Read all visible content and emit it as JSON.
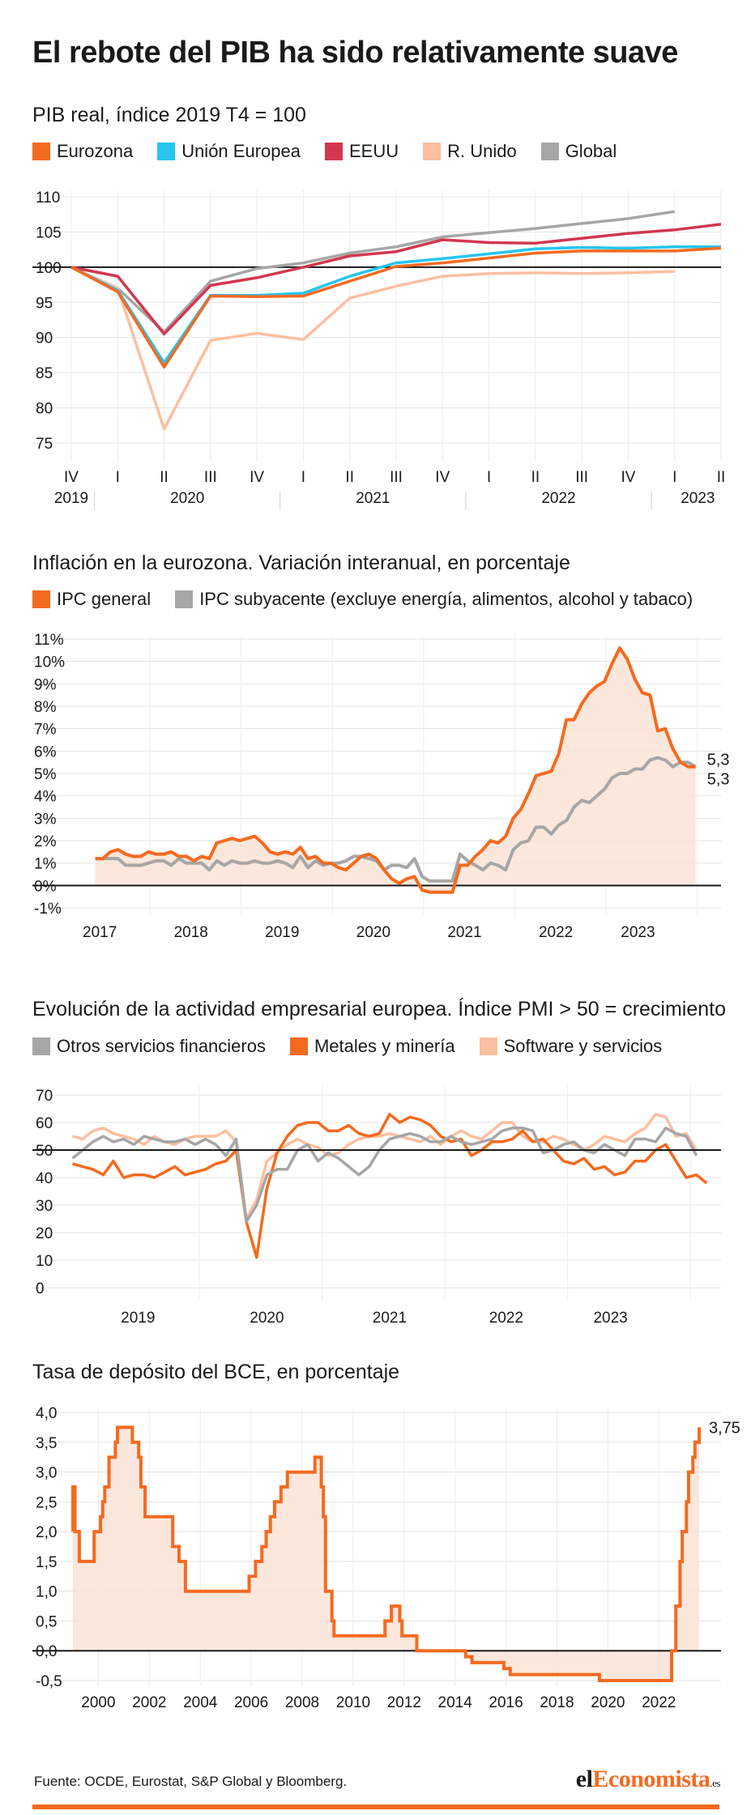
{
  "title": "El rebote del PIB ha sido relativamente suave",
  "source": "Fuente: OCDE, Eurostat, S&P Global y Bloomberg.",
  "brand": {
    "pre": "el",
    "accent": "Economista",
    "suffix": ".es"
  },
  "colors": {
    "orange": "#f46a1f",
    "cyan": "#26c6f0",
    "red": "#d2374f",
    "peach": "#fcbfa0",
    "gray": "#a6a6a6",
    "fill": "#fbe3d6"
  },
  "chart_data": [
    {
      "type": "line",
      "title": "PIB real, índice 2019 T4 = 100",
      "ylim": [
        72,
        112
      ],
      "y_ticks": [
        110,
        105,
        100,
        95,
        90,
        85,
        80,
        75
      ],
      "reference_line": 100,
      "x_quarters": [
        "IV",
        "I",
        "II",
        "III",
        "IV",
        "I",
        "II",
        "III",
        "IV",
        "I",
        "II",
        "III",
        "IV",
        "I",
        "II"
      ],
      "x_years": [
        "2019",
        "2020",
        "2021",
        "2022",
        "2023"
      ],
      "grid": true,
      "series": [
        {
          "name": "Eurozona",
          "color": "#f46a1f",
          "values": [
            100,
            96.5,
            85.8,
            95.9,
            95.8,
            95.9,
            98.0,
            100.1,
            100.6,
            101.3,
            102.0,
            102.3,
            102.3,
            102.3,
            102.7
          ]
        },
        {
          "name": "Unión Europea",
          "color": "#26c6f0",
          "values": [
            100,
            96.7,
            86.4,
            96.0,
            96.0,
            96.3,
            98.7,
            100.6,
            101.2,
            101.9,
            102.6,
            102.8,
            102.7,
            102.9,
            102.9
          ]
        },
        {
          "name": "EEUU",
          "color": "#d2374f",
          "values": [
            100,
            98.7,
            90.5,
            97.4,
            98.5,
            100.0,
            101.6,
            102.2,
            103.9,
            103.5,
            103.4,
            104.1,
            104.8,
            105.3,
            106.1
          ]
        },
        {
          "name": "R. Unido",
          "color": "#fcbfa0",
          "values": [
            100,
            97.0,
            77.0,
            89.6,
            90.6,
            89.7,
            95.6,
            97.3,
            98.7,
            99.1,
            99.2,
            99.1,
            99.2,
            99.4,
            null
          ]
        },
        {
          "name": "Global",
          "color": "#a6a6a6",
          "values": [
            100,
            97.0,
            90.8,
            98.0,
            99.8,
            100.6,
            102.0,
            102.9,
            104.3,
            104.9,
            105.5,
            106.2,
            106.9,
            107.9,
            null
          ]
        }
      ]
    },
    {
      "type": "area",
      "title": "Inflación en la eurozona. Variación interanual, en porcentaje",
      "ylim": [
        -1.5,
        11.5
      ],
      "y_ticks": [
        11,
        10,
        9,
        8,
        7,
        6,
        5,
        4,
        3,
        2,
        1,
        0,
        -1
      ],
      "y_tick_labels": [
        "11%",
        "10%",
        "9%",
        "8%",
        "7%",
        "6%",
        "5%",
        "4%",
        "3%",
        "2%",
        "1%",
        "0%",
        "-1%"
      ],
      "x_years": [
        "2017",
        "2018",
        "2019",
        "2020",
        "2021",
        "2022",
        "2023"
      ],
      "grid": true,
      "end_labels": [
        "5,3",
        "5,3"
      ],
      "series": [
        {
          "name": "IPC general",
          "color": "#f46a1f",
          "start": "2017-01",
          "values": [
            1.2,
            1.2,
            1.5,
            1.6,
            1.4,
            1.3,
            1.3,
            1.5,
            1.4,
            1.4,
            1.5,
            1.3,
            1.3,
            1.1,
            1.3,
            1.2,
            1.9,
            2.0,
            2.1,
            2.0,
            2.1,
            2.2,
            1.9,
            1.5,
            1.4,
            1.5,
            1.4,
            1.7,
            1.2,
            1.3,
            1.0,
            1.0,
            0.8,
            0.7,
            1.0,
            1.3,
            1.4,
            1.2,
            0.7,
            0.3,
            0.1,
            0.3,
            0.4,
            -0.2,
            -0.3,
            -0.3,
            -0.3,
            -0.3,
            0.9,
            0.9,
            1.3,
            1.6,
            2.0,
            1.9,
            2.2,
            3.0,
            3.4,
            4.1,
            4.9,
            5.0,
            5.1,
            5.9,
            7.4,
            7.4,
            8.1,
            8.6,
            8.9,
            9.1,
            9.9,
            10.6,
            10.1,
            9.2,
            8.6,
            8.5,
            6.9,
            7.0,
            6.1,
            5.5,
            5.3,
            5.3
          ]
        },
        {
          "name": "IPC subyacente (excluye energía, alimentos, alcohol y tabaco)",
          "color": "#a6a6a6",
          "start": "2017-01",
          "values": [
            1.2,
            1.2,
            1.2,
            1.2,
            0.9,
            0.9,
            0.9,
            1.0,
            1.1,
            1.1,
            0.9,
            1.2,
            1.0,
            1.0,
            1.0,
            0.7,
            1.1,
            0.9,
            1.1,
            1.0,
            1.0,
            1.1,
            1.0,
            1.0,
            1.1,
            1.0,
            0.8,
            1.3,
            0.8,
            1.1,
            0.9,
            1.0,
            1.0,
            1.1,
            1.3,
            1.3,
            1.2,
            1.1,
            0.7,
            0.9,
            0.9,
            0.8,
            1.2,
            0.4,
            0.2,
            0.2,
            0.2,
            0.2,
            1.4,
            1.1,
            0.9,
            0.7,
            1.0,
            0.9,
            0.7,
            1.6,
            1.9,
            2.0,
            2.6,
            2.6,
            2.3,
            2.7,
            2.9,
            3.5,
            3.8,
            3.7,
            4.0,
            4.3,
            4.8,
            5.0,
            5.0,
            5.2,
            5.2,
            5.6,
            5.7,
            5.6,
            5.3,
            5.5,
            5.5,
            5.3
          ]
        }
      ]
    },
    {
      "type": "line",
      "title": "Evolución de la actividad empresarial europea. Índice PMI > 50 = crecimiento",
      "ylim": [
        -4,
        74
      ],
      "y_ticks": [
        70,
        60,
        50,
        40,
        30,
        20,
        10,
        0
      ],
      "reference_line": 50,
      "x_years": [
        "2019",
        "2020",
        "2021",
        "2022",
        "2023"
      ],
      "grid": true,
      "series": [
        {
          "name": "Otros servicios financieros",
          "color": "#a6a6a6",
          "start": "2018-06",
          "values": [
            47,
            50,
            53,
            55,
            53,
            54,
            52,
            55,
            54,
            53,
            53,
            54,
            52,
            54,
            52,
            48,
            54,
            24,
            30,
            41,
            43,
            43,
            50,
            52,
            46,
            49,
            47,
            44,
            41,
            44,
            50,
            54,
            55,
            56,
            55,
            53,
            53,
            55,
            53,
            52,
            53,
            54,
            57,
            58,
            58,
            57,
            49,
            50,
            52,
            53,
            50,
            49,
            52,
            50,
            48,
            54,
            54,
            53,
            58,
            56,
            55,
            48
          ]
        },
        {
          "name": "Metales y minería",
          "color": "#f46a1f",
          "start": "2018-06",
          "values": [
            45,
            44,
            43,
            41,
            46,
            40,
            41,
            41,
            40,
            42,
            44,
            41,
            42,
            43,
            45,
            46,
            50,
            24,
            11,
            36,
            49,
            55,
            59,
            60,
            60,
            57,
            57,
            59,
            56,
            55,
            56,
            63,
            60,
            62,
            61,
            59,
            55,
            53,
            54,
            48,
            50,
            53,
            53,
            54,
            57,
            53,
            54,
            50,
            46,
            45,
            47,
            43,
            44,
            41,
            42,
            46,
            46,
            50,
            52,
            46,
            40,
            41,
            38
          ]
        },
        {
          "name": "Software y servicios",
          "color": "#fcbfa0",
          "start": "2018-06",
          "values": [
            55,
            54,
            57,
            58,
            56,
            55,
            54,
            52,
            55,
            53,
            52,
            54,
            55,
            55,
            55,
            57,
            53,
            25,
            32,
            46,
            49,
            52,
            54,
            52,
            51,
            48,
            49,
            52,
            54,
            55,
            55,
            56,
            55,
            54,
            53,
            55,
            52,
            55,
            57,
            55,
            54,
            57,
            60,
            60,
            55,
            53,
            53,
            55,
            54,
            52,
            50,
            52,
            55,
            54,
            53,
            56,
            58,
            63,
            62,
            55,
            56,
            50
          ]
        }
      ]
    },
    {
      "type": "area",
      "title": "Tasa de depósito del BCE, en porcentaje",
      "ylim": [
        -0.75,
        4.25
      ],
      "y_ticks": [
        4.0,
        3.5,
        3.0,
        2.5,
        2.0,
        1.5,
        1.0,
        0.5,
        0.0,
        -0.5
      ],
      "y_tick_labels": [
        "4,0",
        "3,5",
        "3,0",
        "2,5",
        "2,0",
        "1,5",
        "1,0",
        "0,5",
        "0,0",
        "-0,5"
      ],
      "x_years": [
        "2000",
        "2002",
        "2004",
        "2006",
        "2008",
        "2010",
        "2012",
        "2014",
        "2016",
        "2018",
        "2020",
        "2022"
      ],
      "grid": true,
      "end_label": "3,75",
      "series": [
        {
          "name": "",
          "color": "#f46a1f",
          "steps": [
            [
              "1999-01",
              2.0
            ],
            [
              "1999-01",
              2.75
            ],
            [
              "1999-02",
              2.0
            ],
            [
              "1999-04",
              1.5
            ],
            [
              "1999-11",
              2.0
            ],
            [
              "2000-02",
              2.25
            ],
            [
              "2000-03",
              2.5
            ],
            [
              "2000-04",
              2.75
            ],
            [
              "2000-06",
              3.25
            ],
            [
              "2000-09",
              3.5
            ],
            [
              "2000-10",
              3.75
            ],
            [
              "2001-05",
              3.5
            ],
            [
              "2001-08",
              3.25
            ],
            [
              "2001-09",
              2.75
            ],
            [
              "2001-11",
              2.25
            ],
            [
              "2002-12",
              1.75
            ],
            [
              "2003-03",
              1.5
            ],
            [
              "2003-06",
              1.0
            ],
            [
              "2005-12",
              1.25
            ],
            [
              "2006-03",
              1.5
            ],
            [
              "2006-06",
              1.75
            ],
            [
              "2006-08",
              2.0
            ],
            [
              "2006-10",
              2.25
            ],
            [
              "2006-12",
              2.5
            ],
            [
              "2007-03",
              2.75
            ],
            [
              "2007-06",
              3.0
            ],
            [
              "2008-07",
              3.25
            ],
            [
              "2008-10",
              2.75
            ],
            [
              "2008-11",
              2.25
            ],
            [
              "2008-12",
              1.0
            ],
            [
              "2009-01",
              1.0
            ],
            [
              "2009-03",
              0.5
            ],
            [
              "2009-04",
              0.25
            ],
            [
              "2011-04",
              0.5
            ],
            [
              "2011-07",
              0.75
            ],
            [
              "2011-11",
              0.5
            ],
            [
              "2011-12",
              0.25
            ],
            [
              "2012-07",
              0.0
            ],
            [
              "2014-06",
              -0.1
            ],
            [
              "2014-09",
              -0.2
            ],
            [
              "2015-12",
              -0.3
            ],
            [
              "2016-03",
              -0.4
            ],
            [
              "2019-09",
              -0.5
            ],
            [
              "2022-07",
              0.0
            ],
            [
              "2022-09",
              0.75
            ],
            [
              "2022-11",
              1.5
            ],
            [
              "2022-12",
              2.0
            ],
            [
              "2023-02",
              2.5
            ],
            [
              "2023-03",
              3.0
            ],
            [
              "2023-05",
              3.25
            ],
            [
              "2023-06",
              3.5
            ],
            [
              "2023-08",
              3.75
            ],
            [
              "2023-08",
              3.75
            ]
          ]
        }
      ]
    }
  ]
}
